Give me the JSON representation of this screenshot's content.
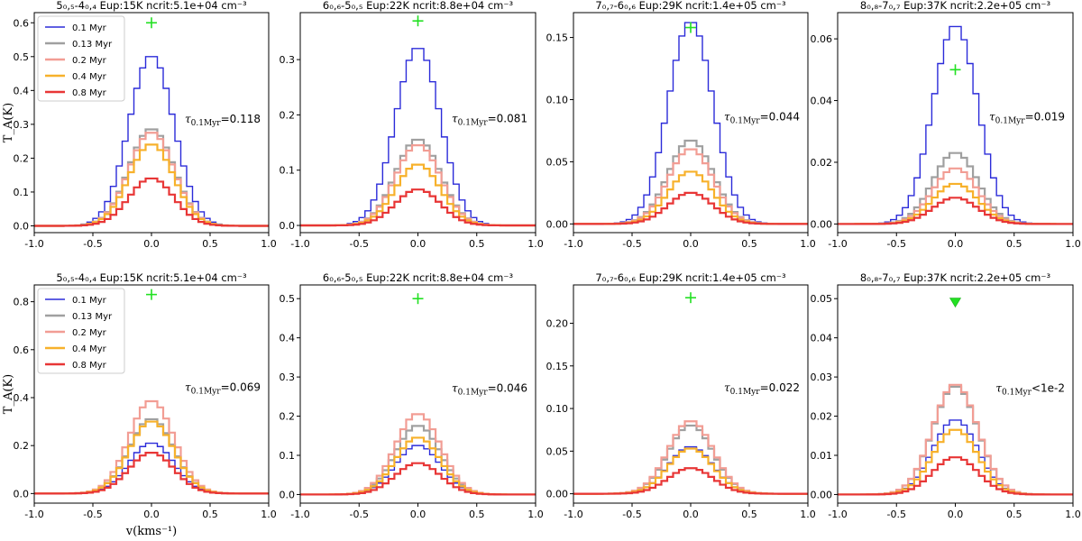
{
  "figure": {
    "ylabel": "T_A(K)",
    "xlabel": "v(kms⁻¹)"
  },
  "colors": {
    "0.1 Myr": "#2b2bd9",
    "0.13 Myr": "#a0a0a0",
    "0.2 Myr": "#f29d94",
    "0.4 Myr": "#f7b12b",
    "0.8 Myr": "#e83636",
    "observed": "#22e022"
  },
  "chart_data": [
    {
      "type": "line",
      "row": 0,
      "col": 0,
      "title": "5₀,₅-4₀,₄ Eup:15K ncrit:5.1e+04 cm⁻³",
      "xlim": [
        -1,
        1
      ],
      "ylim": [
        -0.02,
        0.63
      ],
      "yticks": [
        0,
        0.1,
        0.2,
        0.3,
        0.4,
        0.5,
        0.6
      ],
      "xticks": [
        -1,
        -0.5,
        0,
        0.5,
        1
      ],
      "xlabel": "",
      "ylabel": "T_A(K)",
      "tau_label": "τ",
      "tau_sub": "0.1Myr",
      "tau_value": "=0.118",
      "legend": [
        "0.1 Myr",
        "0.13 Myr",
        "0.2 Myr",
        "0.4 Myr",
        "0.8 Myr"
      ],
      "series": [
        {
          "name": "0.1 Myr",
          "peak": 0.5
        },
        {
          "name": "0.13 Myr",
          "peak": 0.285
        },
        {
          "name": "0.2 Myr",
          "peak": 0.275
        },
        {
          "name": "0.4 Myr",
          "peak": 0.24
        },
        {
          "name": "0.8 Myr",
          "peak": 0.14
        }
      ],
      "observed": {
        "marker": "plus",
        "x": 0,
        "y": 0.6
      }
    },
    {
      "type": "line",
      "row": 0,
      "col": 1,
      "title": "6₀,₆-5₀,₅ Eup:22K ncrit:8.8e+04 cm⁻³",
      "xlim": [
        -1,
        1
      ],
      "ylim": [
        -0.013,
        0.385
      ],
      "yticks": [
        0,
        0.1,
        0.2,
        0.3
      ],
      "xticks": [
        -1,
        -0.5,
        0,
        0.5,
        1
      ],
      "xlabel": "",
      "ylabel": "",
      "tau_label": "τ",
      "tau_sub": "0.1Myr",
      "tau_value": "=0.081",
      "series": [
        {
          "name": "0.1 Myr",
          "peak": 0.32
        },
        {
          "name": "0.13 Myr",
          "peak": 0.155
        },
        {
          "name": "0.2 Myr",
          "peak": 0.145
        },
        {
          "name": "0.4 Myr",
          "peak": 0.11
        },
        {
          "name": "0.8 Myr",
          "peak": 0.065
        }
      ],
      "observed": {
        "marker": "plus",
        "x": 0,
        "y": 0.37
      }
    },
    {
      "type": "line",
      "row": 0,
      "col": 2,
      "title": "7₀,₇-6₀,₆ Eup:29K ncrit:1.4e+05 cm⁻³",
      "xlim": [
        -1,
        1
      ],
      "ylim": [
        -0.007,
        0.17
      ],
      "yticks": [
        0,
        0.05,
        0.1,
        0.15
      ],
      "xticks": [
        -1,
        -0.5,
        0,
        0.5,
        1
      ],
      "xlabel": "",
      "ylabel": "",
      "tau_label": "τ",
      "tau_sub": "0.1Myr",
      "tau_value": "=0.044",
      "series": [
        {
          "name": "0.1 Myr",
          "peak": 0.162
        },
        {
          "name": "0.13 Myr",
          "peak": 0.067
        },
        {
          "name": "0.2 Myr",
          "peak": 0.06
        },
        {
          "name": "0.4 Myr",
          "peak": 0.042
        },
        {
          "name": "0.8 Myr",
          "peak": 0.025
        }
      ],
      "observed": {
        "marker": "plus",
        "x": 0,
        "y": 0.158
      }
    },
    {
      "type": "line",
      "row": 0,
      "col": 3,
      "title": "8₀,₈-7₀,₇ Eup:37K ncrit:2.2e+05 cm⁻³",
      "xlim": [
        -1,
        1
      ],
      "ylim": [
        -0.0028,
        0.0685
      ],
      "yticks": [
        0,
        0.02,
        0.04,
        0.06
      ],
      "xticks": [
        -1,
        -0.5,
        0,
        0.5,
        1
      ],
      "xlabel": "",
      "ylabel": "",
      "tau_label": "τ",
      "tau_sub": "0.1Myr",
      "tau_value": "=0.019",
      "series": [
        {
          "name": "0.1 Myr",
          "peak": 0.064
        },
        {
          "name": "0.13 Myr",
          "peak": 0.023
        },
        {
          "name": "0.2 Myr",
          "peak": 0.018
        },
        {
          "name": "0.4 Myr",
          "peak": 0.013
        },
        {
          "name": "0.8 Myr",
          "peak": 0.0085
        }
      ],
      "observed": {
        "marker": "plus",
        "x": 0,
        "y": 0.05
      }
    },
    {
      "type": "line",
      "row": 1,
      "col": 0,
      "title": "5₀,₅-4₀,₄ Eup:15K ncrit:5.1e+04 cm⁻³",
      "xlim": [
        -1,
        1
      ],
      "ylim": [
        -0.04,
        0.87
      ],
      "yticks": [
        0,
        0.2,
        0.4,
        0.6,
        0.8
      ],
      "xticks": [
        -1,
        -0.5,
        0,
        0.5,
        1
      ],
      "xlabel": "v(kms⁻¹)",
      "ylabel": "T_A(K)",
      "tau_label": "τ",
      "tau_sub": "0.1Myr",
      "tau_value": "=0.069",
      "legend": [
        "0.1 Myr",
        "0.13 Myr",
        "0.2 Myr",
        "0.4 Myr",
        "0.8 Myr"
      ],
      "series": [
        {
          "name": "0.1 Myr",
          "peak": 0.21
        },
        {
          "name": "0.13 Myr",
          "peak": 0.31
        },
        {
          "name": "0.2 Myr",
          "peak": 0.385
        },
        {
          "name": "0.4 Myr",
          "peak": 0.3
        },
        {
          "name": "0.8 Myr",
          "peak": 0.17
        }
      ],
      "observed": {
        "marker": "plus",
        "x": 0,
        "y": 0.83
      }
    },
    {
      "type": "line",
      "row": 1,
      "col": 1,
      "title": "6₀,₆-5₀,₅ Eup:22K ncrit:8.8e+04 cm⁻³",
      "xlim": [
        -1,
        1
      ],
      "ylim": [
        -0.022,
        0.535
      ],
      "yticks": [
        0,
        0.1,
        0.2,
        0.3,
        0.4,
        0.5
      ],
      "xticks": [
        -1,
        -0.5,
        0,
        0.5,
        1
      ],
      "xlabel": "",
      "ylabel": "",
      "tau_label": "τ",
      "tau_sub": "0.1Myr",
      "tau_value": "=0.046",
      "series": [
        {
          "name": "0.1 Myr",
          "peak": 0.125
        },
        {
          "name": "0.13 Myr",
          "peak": 0.175
        },
        {
          "name": "0.2 Myr",
          "peak": 0.205
        },
        {
          "name": "0.4 Myr",
          "peak": 0.145
        },
        {
          "name": "0.8 Myr",
          "peak": 0.08
        }
      ],
      "observed": {
        "marker": "plus",
        "x": 0,
        "y": 0.5
      }
    },
    {
      "type": "line",
      "row": 1,
      "col": 2,
      "title": "7₀,₇-6₀,₆ Eup:29K ncrit:1.4e+05 cm⁻³",
      "xlim": [
        -1,
        1
      ],
      "ylim": [
        -0.011,
        0.245
      ],
      "yticks": [
        0,
        0.05,
        0.1,
        0.15,
        0.2
      ],
      "xticks": [
        -1,
        -0.5,
        0,
        0.5,
        1
      ],
      "xlabel": "",
      "ylabel": "",
      "tau_label": "τ",
      "tau_sub": "0.1Myr",
      "tau_value": "=0.022",
      "series": [
        {
          "name": "0.1 Myr",
          "peak": 0.055
        },
        {
          "name": "0.13 Myr",
          "peak": 0.08
        },
        {
          "name": "0.2 Myr",
          "peak": 0.085
        },
        {
          "name": "0.4 Myr",
          "peak": 0.053
        },
        {
          "name": "0.8 Myr",
          "peak": 0.03
        }
      ],
      "observed": {
        "marker": "plus",
        "x": 0,
        "y": 0.23
      }
    },
    {
      "type": "line",
      "row": 1,
      "col": 3,
      "title": "8₀,₈-7₀,₇ Eup:37K ncrit:2.2e+05 cm⁻³",
      "xlim": [
        -1,
        1
      ],
      "ylim": [
        -0.0022,
        0.0535
      ],
      "yticks": [
        0,
        0.01,
        0.02,
        0.03,
        0.04,
        0.05
      ],
      "xticks": [
        -1,
        -0.5,
        0,
        0.5,
        1
      ],
      "xlabel": "",
      "ylabel": "",
      "tau_label": "τ",
      "tau_sub": "0.1Myr",
      "tau_value": "<1e-2",
      "series": [
        {
          "name": "0.1 Myr",
          "peak": 0.019
        },
        {
          "name": "0.13 Myr",
          "peak": 0.0275
        },
        {
          "name": "0.2 Myr",
          "peak": 0.028
        },
        {
          "name": "0.4 Myr",
          "peak": 0.0165
        },
        {
          "name": "0.8 Myr",
          "peak": 0.0095
        }
      ],
      "observed": {
        "marker": "triangle-down",
        "x": 0,
        "y": 0.049
      }
    }
  ]
}
